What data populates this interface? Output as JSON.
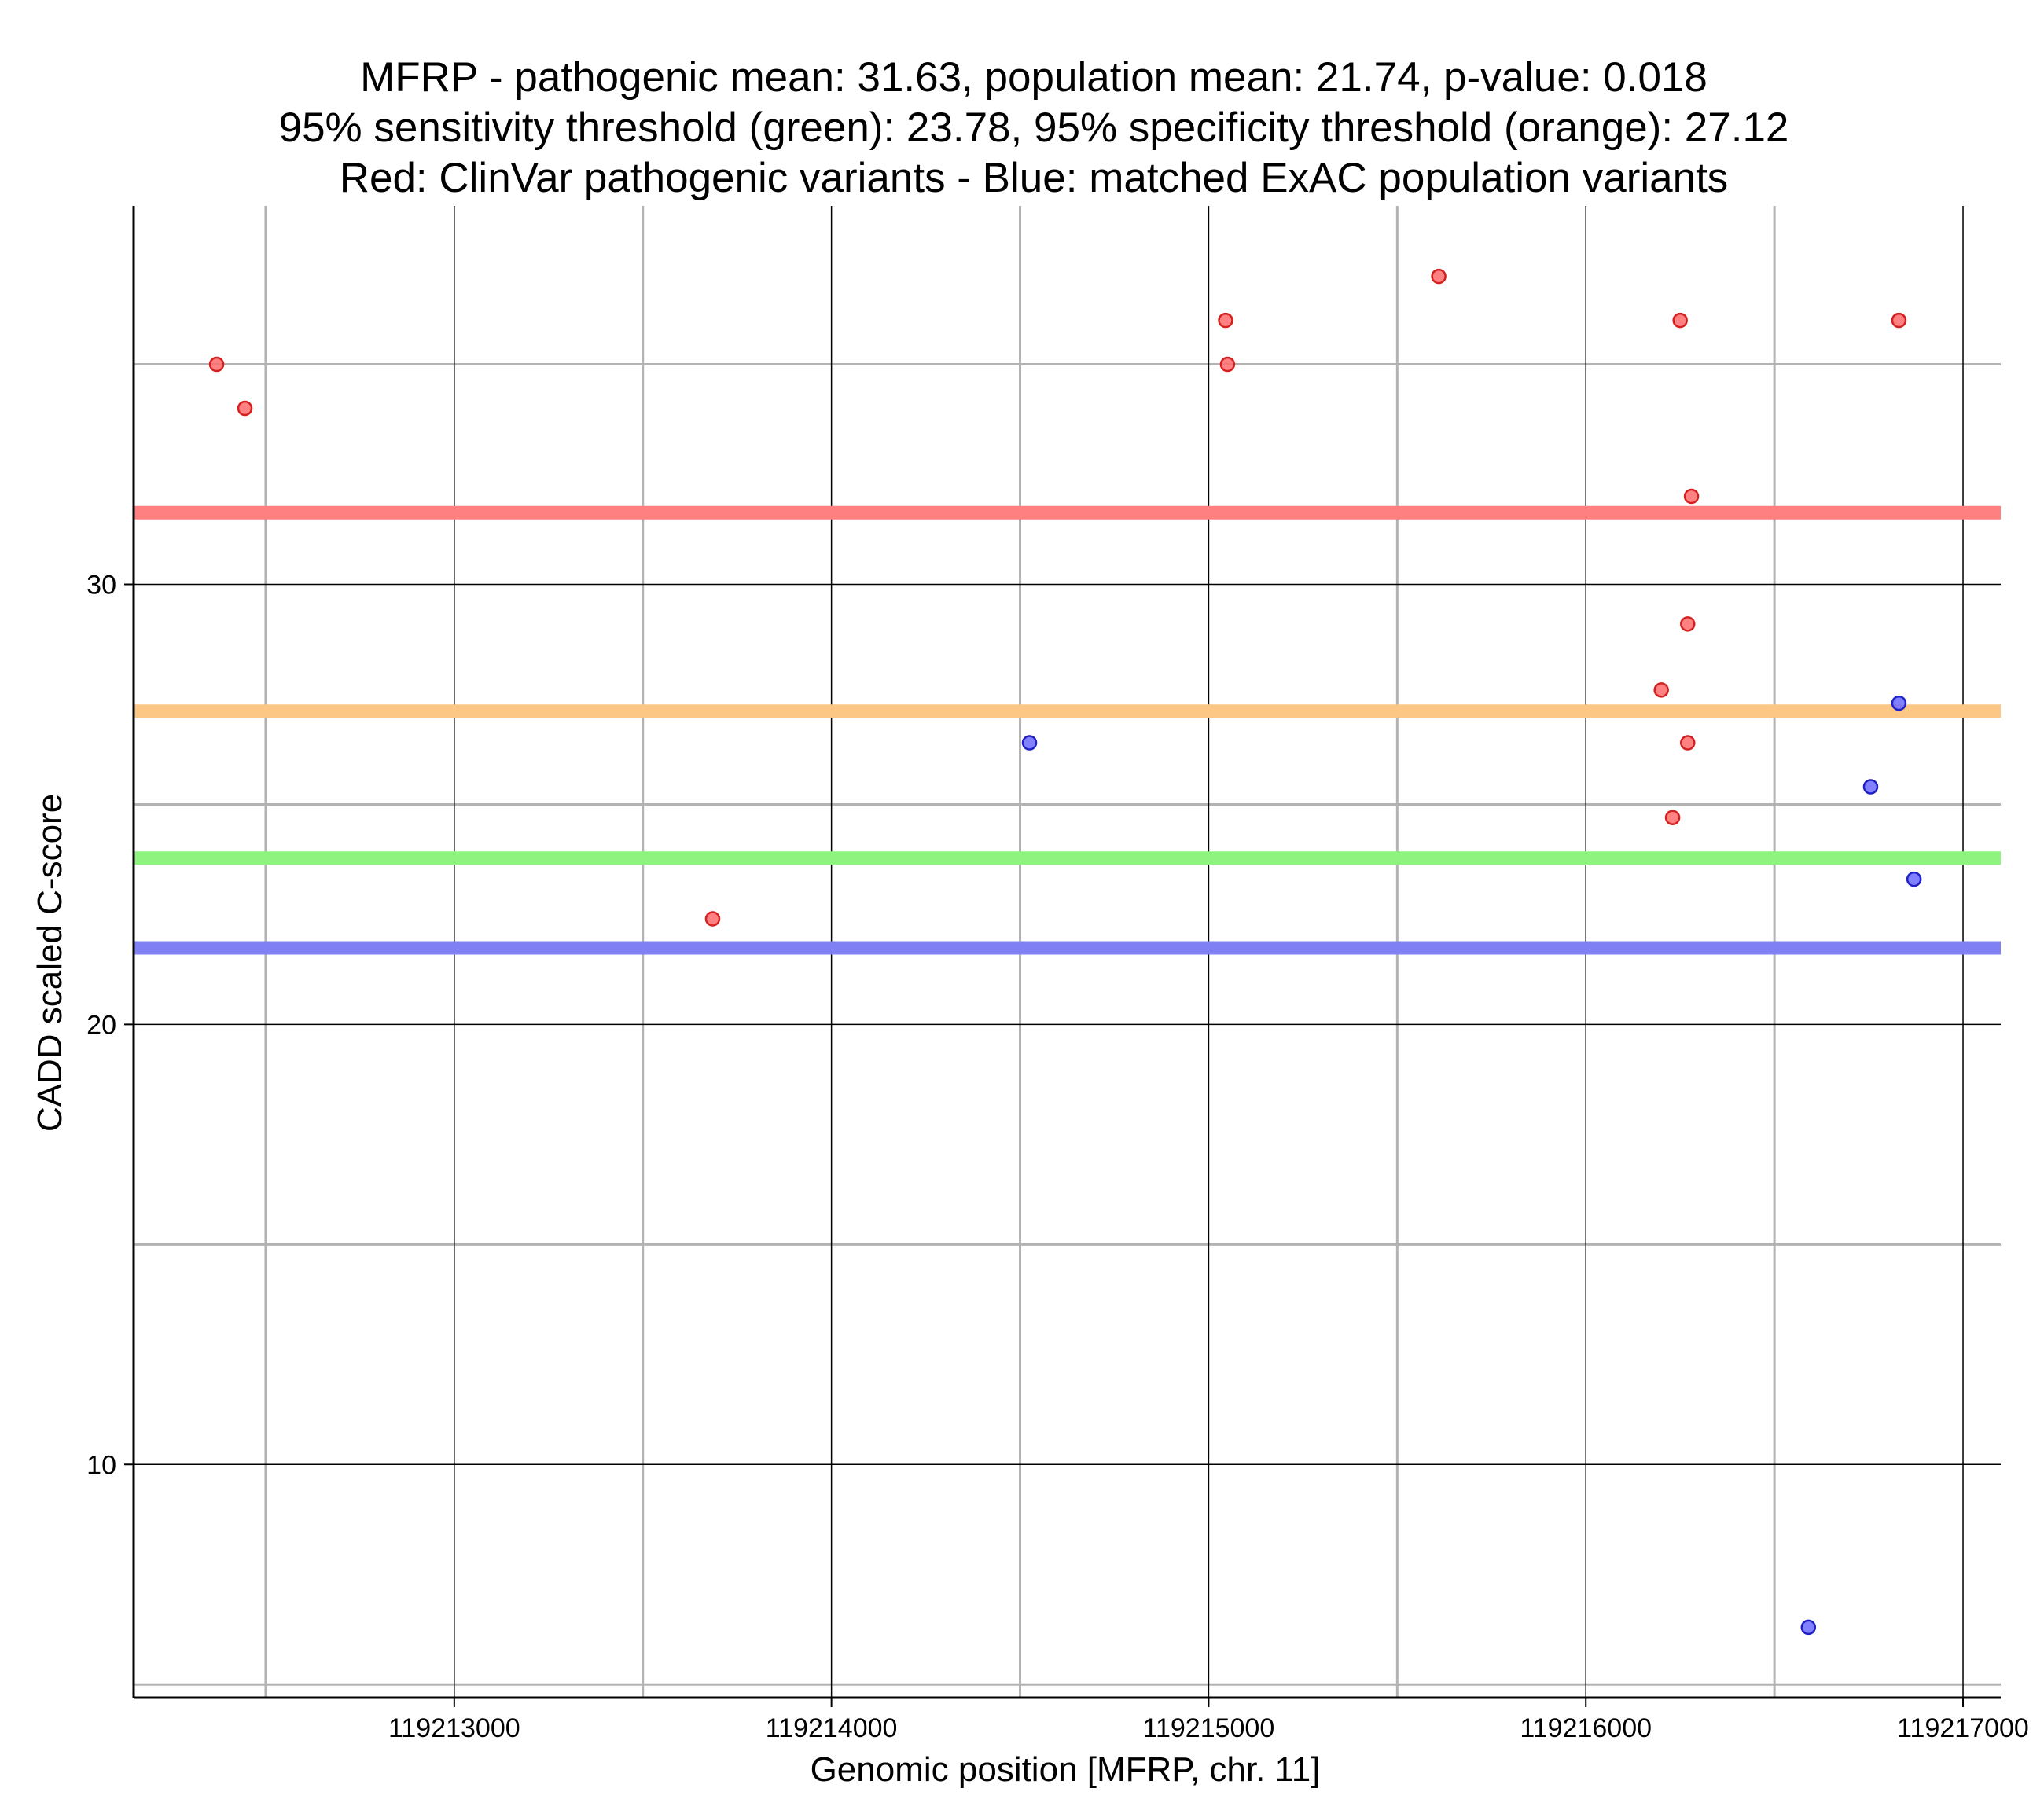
{
  "chart_data": {
    "type": "scatter",
    "title_lines": [
      "MFRP - pathogenic mean: 31.63, population mean: 21.74, p-value: 0.018",
      "95% sensitivity threshold (green): 23.78, 95% specificity threshold (orange): 27.12",
      "Red: ClinVar pathogenic variants - Blue: matched ExAC population variants"
    ],
    "xlabel": "Genomic position [MFRP, chr. 11]",
    "ylabel": "CADD scaled C-score",
    "xlim": [
      119212150,
      119217100
    ],
    "ylim": [
      4.7,
      38.6
    ],
    "x_major_ticks": [
      119213000,
      119214000,
      119215000,
      119216000,
      119217000
    ],
    "x_tick_labels": [
      "119213000",
      "119214000",
      "119215000",
      "119216000",
      "119217000"
    ],
    "x_minor_ticks": [
      119212500,
      119213500,
      119214500,
      119215500,
      119216500
    ],
    "y_major_ticks": [
      10,
      20,
      30
    ],
    "y_tick_labels": [
      "10",
      "20",
      "30"
    ],
    "y_minor_ticks": [
      5,
      15,
      25,
      35
    ],
    "grid": true,
    "reference_lines": [
      {
        "name": "pathogenic mean",
        "value": 31.63,
        "color": "#ff8080"
      },
      {
        "name": "95% specificity threshold",
        "value": 27.12,
        "color": "#fcc785"
      },
      {
        "name": "95% sensitivity threshold",
        "value": 23.78,
        "color": "#8ef37f"
      },
      {
        "name": "population mean",
        "value": 21.74,
        "color": "#8080f5"
      }
    ],
    "series": [
      {
        "name": "ClinVar pathogenic variants",
        "color": "#ff6b6b",
        "stroke": "#d42020",
        "points": [
          {
            "x": 119212370,
            "y": 35.0
          },
          {
            "x": 119212445,
            "y": 34.0
          },
          {
            "x": 119213685,
            "y": 22.4
          },
          {
            "x": 119215045,
            "y": 36.0
          },
          {
            "x": 119215050,
            "y": 35.0
          },
          {
            "x": 119215610,
            "y": 37.0
          },
          {
            "x": 119216200,
            "y": 27.6
          },
          {
            "x": 119216230,
            "y": 24.7
          },
          {
            "x": 119216250,
            "y": 36.0
          },
          {
            "x": 119216270,
            "y": 29.1
          },
          {
            "x": 119216270,
            "y": 26.4
          },
          {
            "x": 119216280,
            "y": 32.0
          },
          {
            "x": 119216830,
            "y": 36.0
          }
        ]
      },
      {
        "name": "matched ExAC population variants",
        "color": "#6b6bff",
        "stroke": "#2020c8",
        "points": [
          {
            "x": 119214525,
            "y": 26.4
          },
          {
            "x": 119216590,
            "y": 6.3
          },
          {
            "x": 119216755,
            "y": 25.4
          },
          {
            "x": 119216830,
            "y": 27.3
          },
          {
            "x": 119216870,
            "y": 23.3
          }
        ]
      }
    ]
  }
}
